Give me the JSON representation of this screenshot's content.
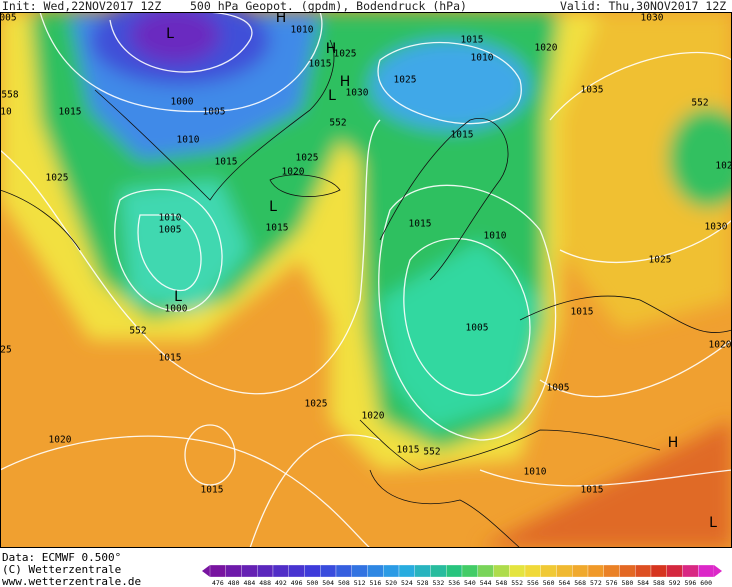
{
  "header": {
    "init": "Init: Wed,22NOV2017 12Z",
    "title": "500 hPa Geopot. (gpdm), Bodendruck (hPa)",
    "valid": "Valid: Thu,30NOV2017 12Z"
  },
  "map": {
    "labels": [
      "005",
      "1010",
      "1025",
      "1015",
      "1030",
      "1015",
      "1010",
      "1020",
      "1030",
      "1025",
      "1035",
      "552",
      "102",
      "558",
      "10",
      "1000",
      "1005",
      "1010",
      "1015",
      "1015",
      "1025",
      "1020",
      "552",
      "1015",
      "1025",
      "1010",
      "1005",
      "1015",
      "1000",
      "552",
      "1015",
      "25",
      "1025",
      "1020",
      "1015",
      "552",
      "1020",
      "1015",
      "1015",
      "1010",
      "1005",
      "1015",
      "1030",
      "1025",
      "1005",
      "1020",
      "1010",
      "1015"
    ],
    "centers": [
      "H",
      "H",
      "H",
      "L",
      "L",
      "L",
      "L",
      "H",
      "L"
    ]
  },
  "footer": {
    "data": "Data: ECMWF  0.500°",
    "copyright": "(C) Wetterzentrale",
    "url": "www.wetterzentrale.de"
  },
  "colorbar": {
    "labels": [
      476,
      480,
      484,
      488,
      492,
      496,
      500,
      504,
      508,
      512,
      516,
      520,
      524,
      528,
      532,
      536,
      540,
      544,
      548,
      552,
      556,
      560,
      564,
      568,
      572,
      576,
      580,
      584,
      588,
      592,
      596,
      600
    ]
  }
}
